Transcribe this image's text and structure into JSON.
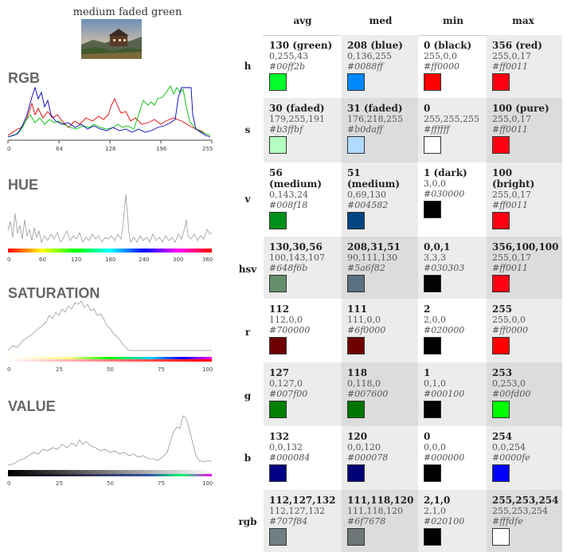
{
  "image_title": "medium faded green",
  "sections": {
    "rgb": "RGB",
    "hue": "HUE",
    "saturation": "SATURATION",
    "value": "VALUE"
  },
  "axes": {
    "rgb_ticks": [
      "0",
      "64",
      "128",
      "196",
      "255"
    ],
    "hue_ticks": [
      "0",
      "60",
      "120",
      "180",
      "240",
      "300",
      "360"
    ],
    "sat_ticks": [
      "0",
      "25",
      "50",
      "75",
      "100"
    ],
    "val_ticks": [
      "0",
      "25",
      "50",
      "75",
      "100"
    ]
  },
  "columns": [
    "avg",
    "med",
    "min",
    "max"
  ],
  "rows": [
    {
      "label": "h",
      "cells": [
        {
          "main": "130 (green)",
          "sub": "0,255,43",
          "hex": "#00ff2b",
          "color": "#00ff2b"
        },
        {
          "main": "208 (blue)",
          "sub": "0,136,255",
          "hex": "#0088ff",
          "color": "#0088ff"
        },
        {
          "main": "0 (black)",
          "sub": "255,0,0",
          "hex": "#ff0000",
          "color": "#ff0000"
        },
        {
          "main": "356 (red)",
          "sub": "255,0,17",
          "hex": "#ff0011",
          "color": "#ff0011"
        }
      ]
    },
    {
      "label": "s",
      "cells": [
        {
          "main": "30 (faded)",
          "sub": "179,255,191",
          "hex": "#b3ffbf",
          "color": "#b3ffbf"
        },
        {
          "main": "31 (faded)",
          "sub": "176,218,255",
          "hex": "#b0daff",
          "color": "#b0daff"
        },
        {
          "main": "0",
          "sub": "255,255,255",
          "hex": "#ffffff",
          "color": "#ffffff"
        },
        {
          "main": "100 (pure)",
          "sub": "255,0,17",
          "hex": "#ff0011",
          "color": "#ff0011"
        }
      ]
    },
    {
      "label": "v",
      "cells": [
        {
          "main": "56 (medium)",
          "sub": "0,143,24",
          "hex": "#008f18",
          "color": "#008f18"
        },
        {
          "main": "51 (medium)",
          "sub": "0,69,130",
          "hex": "#004582",
          "color": "#004582"
        },
        {
          "main": "1 (dark)",
          "sub": "3,0,0",
          "hex": "#030000",
          "color": "#030000"
        },
        {
          "main": "100 (bright)",
          "sub": "255,0,17",
          "hex": "#ff0011",
          "color": "#ff0011"
        }
      ]
    },
    {
      "label": "hsv",
      "cells": [
        {
          "main": "130,30,56",
          "sub": "100,143,107",
          "hex": "#648f6b",
          "color": "#648f6b"
        },
        {
          "main": "208,31,51",
          "sub": "90,111,130",
          "hex": "#5a6f82",
          "color": "#5a6f82"
        },
        {
          "main": "0,0,1",
          "sub": "3,3,3",
          "hex": "#030303",
          "color": "#030303"
        },
        {
          "main": "356,100,100",
          "sub": "255,0,17",
          "hex": "#ff0011",
          "color": "#ff0011"
        }
      ]
    },
    {
      "label": "r",
      "cells": [
        {
          "main": "112",
          "sub": "112,0,0",
          "hex": "#700000",
          "color": "#700000"
        },
        {
          "main": "111",
          "sub": "111,0,0",
          "hex": "#6f0000",
          "color": "#6f0000"
        },
        {
          "main": "2",
          "sub": "2,0,0",
          "hex": "#020000",
          "color": "#020000"
        },
        {
          "main": "255",
          "sub": "255,0,0",
          "hex": "#ff0000",
          "color": "#ff0000"
        }
      ]
    },
    {
      "label": "g",
      "cells": [
        {
          "main": "127",
          "sub": "0,127,0",
          "hex": "#007f00",
          "color": "#007f00"
        },
        {
          "main": "118",
          "sub": "0,118,0",
          "hex": "#007600",
          "color": "#007600"
        },
        {
          "main": "1",
          "sub": "0,1,0",
          "hex": "#000100",
          "color": "#000100"
        },
        {
          "main": "253",
          "sub": "0,253,0",
          "hex": "#00fd00",
          "color": "#00fd00"
        }
      ]
    },
    {
      "label": "b",
      "cells": [
        {
          "main": "132",
          "sub": "0,0,132",
          "hex": "#000084",
          "color": "#000084"
        },
        {
          "main": "120",
          "sub": "0,0,120",
          "hex": "#000078",
          "color": "#000078"
        },
        {
          "main": "0",
          "sub": "0,0,0",
          "hex": "#000000",
          "color": "#000000"
        },
        {
          "main": "254",
          "sub": "0,0,254",
          "hex": "#0000fe",
          "color": "#0000fe"
        }
      ]
    },
    {
      "label": "rgb",
      "cells": [
        {
          "main": "112,127,132",
          "sub": "112,127,132",
          "hex": "#707f84",
          "color": "#707f84"
        },
        {
          "main": "111,118,120",
          "sub": "111,118,120",
          "hex": "#6f7678",
          "color": "#6f7678"
        },
        {
          "main": "2,1,0",
          "sub": "2,1,0",
          "hex": "#020100",
          "color": "#020100"
        },
        {
          "main": "255,253,254",
          "sub": "255,253,254",
          "hex": "#fffdfe",
          "color": "#fffdfe"
        }
      ]
    }
  ]
}
